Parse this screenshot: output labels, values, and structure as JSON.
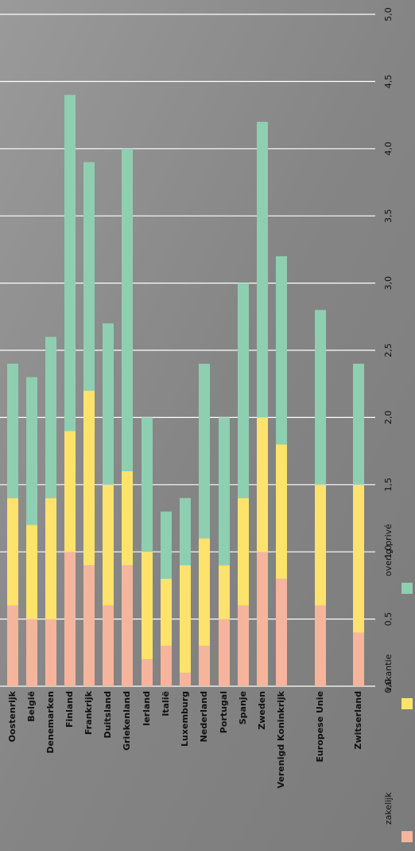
{
  "chart_data": {
    "type": "bar",
    "stacked": true,
    "grid": true,
    "categories": [
      "Oostenrijk",
      "België",
      "Denemarken",
      "Finland",
      "Frankrijk",
      "Duitsland",
      "Griekenland",
      "Ierland",
      "Italië",
      "Luxemburg",
      "Nederland",
      "Portugal",
      "Spanje",
      "Zweden",
      "Verenigd Koninkrijk",
      "Europese Unie",
      "Zwitserland"
    ],
    "series": [
      {
        "name": "zakelijk",
        "color": "#f5b59c",
        "values": [
          0.6,
          0.5,
          0.5,
          1.0,
          0.9,
          0.6,
          0.9,
          0.2,
          0.3,
          0.1,
          0.3,
          0.5,
          0.6,
          1.0,
          0.8,
          0.6,
          0.4
        ]
      },
      {
        "name": "vakantie",
        "color": "#fde36c",
        "values": [
          0.8,
          0.7,
          0.9,
          0.9,
          1.3,
          0.9,
          0.7,
          0.8,
          0.5,
          0.8,
          0.8,
          0.4,
          0.8,
          1.0,
          1.0,
          0.9,
          1.1
        ]
      },
      {
        "name": "overig privé",
        "color": "#8ecfb1",
        "values": [
          1.0,
          1.1,
          1.2,
          2.5,
          1.7,
          1.2,
          2.4,
          1.0,
          0.5,
          0.5,
          1.3,
          1.1,
          1.6,
          2.2,
          1.4,
          1.3,
          0.9
        ]
      }
    ],
    "ylim": [
      0,
      5
    ],
    "yticks": [
      {
        "value": 0,
        "label": "0,0"
      },
      {
        "value": 0.5,
        "label": "0,5"
      },
      {
        "value": 1,
        "label": "1,0"
      },
      {
        "value": 1.5,
        "label": "1,5"
      },
      {
        "value": 2,
        "label": "2,0"
      },
      {
        "value": 2.5,
        "label": "2,5"
      },
      {
        "value": 3,
        "label": "3,0"
      },
      {
        "value": 3.5,
        "label": "3,5"
      },
      {
        "value": 4,
        "label": "4,0"
      },
      {
        "value": 4.5,
        "label": "4,5"
      },
      {
        "value": 5,
        "label": "5,0"
      }
    ]
  }
}
